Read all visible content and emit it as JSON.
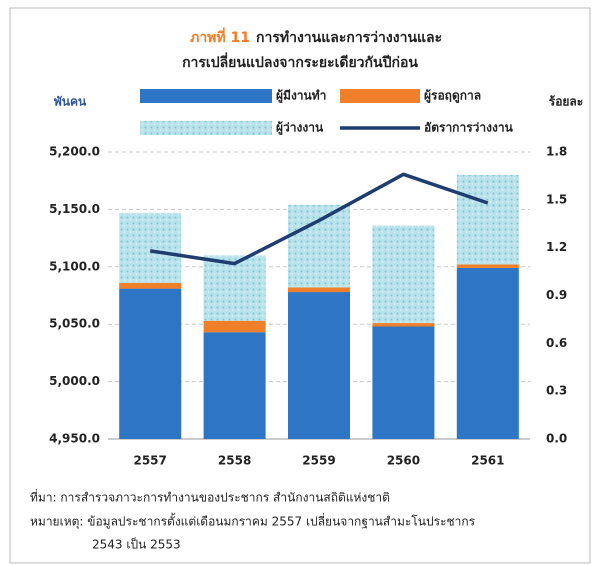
{
  "chart_data": {
    "type": "bar",
    "title_label": "ภาพที่ 11",
    "title": [
      "การทำงานและการว่างงานและ",
      "การเปลี่ยนแปลงจากระยะเดียวกันปีก่อน"
    ],
    "y_label": "พันคน",
    "y2_label": "ร้อยละ",
    "categories": [
      "2557",
      "2558",
      "2559",
      "2560",
      "2561"
    ],
    "series": [
      {
        "name": "ผู้มีงานทำ",
        "color": "#2e75c6",
        "values": [
          5081,
          5043,
          5078,
          5048,
          5099
        ]
      },
      {
        "name": "ผู้รอฤดูกาล",
        "color": "#f07f2a",
        "values": [
          5,
          10,
          4,
          3,
          3
        ]
      },
      {
        "name": "ผู้ว่างงาน",
        "color": "#a9dbe6",
        "values": [
          61,
          57,
          72,
          85,
          78
        ]
      },
      {
        "name": "อัตราการว่างงาน",
        "color": "#1f3d6e",
        "type": "line",
        "axis": "y2",
        "values": [
          1.18,
          1.1,
          1.37,
          1.66,
          1.48
        ]
      }
    ],
    "ylim": [
      4950,
      5200
    ],
    "yticks": [
      {
        "value": 4950,
        "label": "4,950.0"
      },
      {
        "value": 5000,
        "label": "5,000.0"
      },
      {
        "value": 5050,
        "label": "5,050.0"
      },
      {
        "value": 5100,
        "label": "5,100.0"
      },
      {
        "value": 5150,
        "label": "5,150.0"
      },
      {
        "value": 5200,
        "label": "5,200.0"
      }
    ],
    "y2lim": [
      0,
      1.8
    ],
    "y2ticks": [
      {
        "value": 0,
        "label": "0.0"
      },
      0.3,
      0.6,
      0.9,
      1.2,
      1.5,
      1.8
    ],
    "grid": true,
    "notes": [
      "ที่มา: การสำรวจภาวะการทำงานของประชากร สำนักงานสถิติแห่งชาติ",
      "หมายเหตุ: ข้อมูลประชากรตั้งแต่เดือนมกราคม 2557 เปลี่ยนจากฐานสำมะโนประชากร",
      "2543 เป็น 2553"
    ]
  }
}
